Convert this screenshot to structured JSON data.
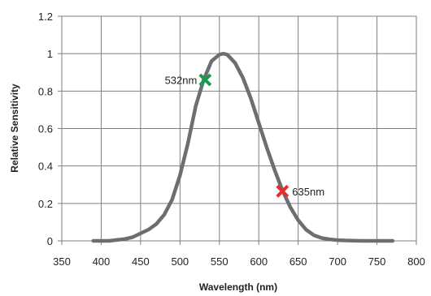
{
  "chart_data": {
    "type": "line",
    "title": "",
    "xlabel": "Wavelength (nm)",
    "ylabel": "Relative Sensitivity",
    "xlim": [
      350,
      800
    ],
    "ylim": [
      0,
      1.2
    ],
    "grid": true,
    "line_color": "#6d6e71",
    "x_ticks": [
      "350",
      "400",
      "450",
      "500",
      "550",
      "600",
      "650",
      "700",
      "750",
      "800"
    ],
    "y_ticks": [
      "0",
      "0.2",
      "0.4",
      "0.6",
      "0.8",
      "1",
      "1.2"
    ],
    "series": [
      {
        "x": [
          390,
          400,
          410,
          420,
          430,
          440,
          450,
          460,
          470,
          480,
          490,
          500,
          510,
          520,
          530,
          540,
          550,
          555,
          560,
          570,
          580,
          590,
          600,
          610,
          620,
          630,
          640,
          650,
          660,
          670,
          680,
          690,
          700,
          710,
          720,
          730,
          740,
          750,
          760,
          770
        ],
        "y": [
          0.0,
          0.0,
          0.0,
          0.005,
          0.01,
          0.02,
          0.04,
          0.06,
          0.09,
          0.14,
          0.22,
          0.35,
          0.52,
          0.72,
          0.86,
          0.96,
          0.995,
          1.0,
          0.995,
          0.95,
          0.87,
          0.76,
          0.63,
          0.5,
          0.38,
          0.27,
          0.18,
          0.11,
          0.06,
          0.03,
          0.015,
          0.008,
          0.004,
          0.002,
          0.001,
          0.0,
          0.0,
          0.0,
          0.0,
          0.0
        ]
      }
    ],
    "annotations": [
      {
        "label": "532nm",
        "x": 532,
        "y": 0.86,
        "color": "#1a9850",
        "label_side": "left"
      },
      {
        "label": "635nm",
        "x": 630,
        "y": 0.265,
        "color": "#e0312f",
        "label_side": "right"
      }
    ]
  }
}
